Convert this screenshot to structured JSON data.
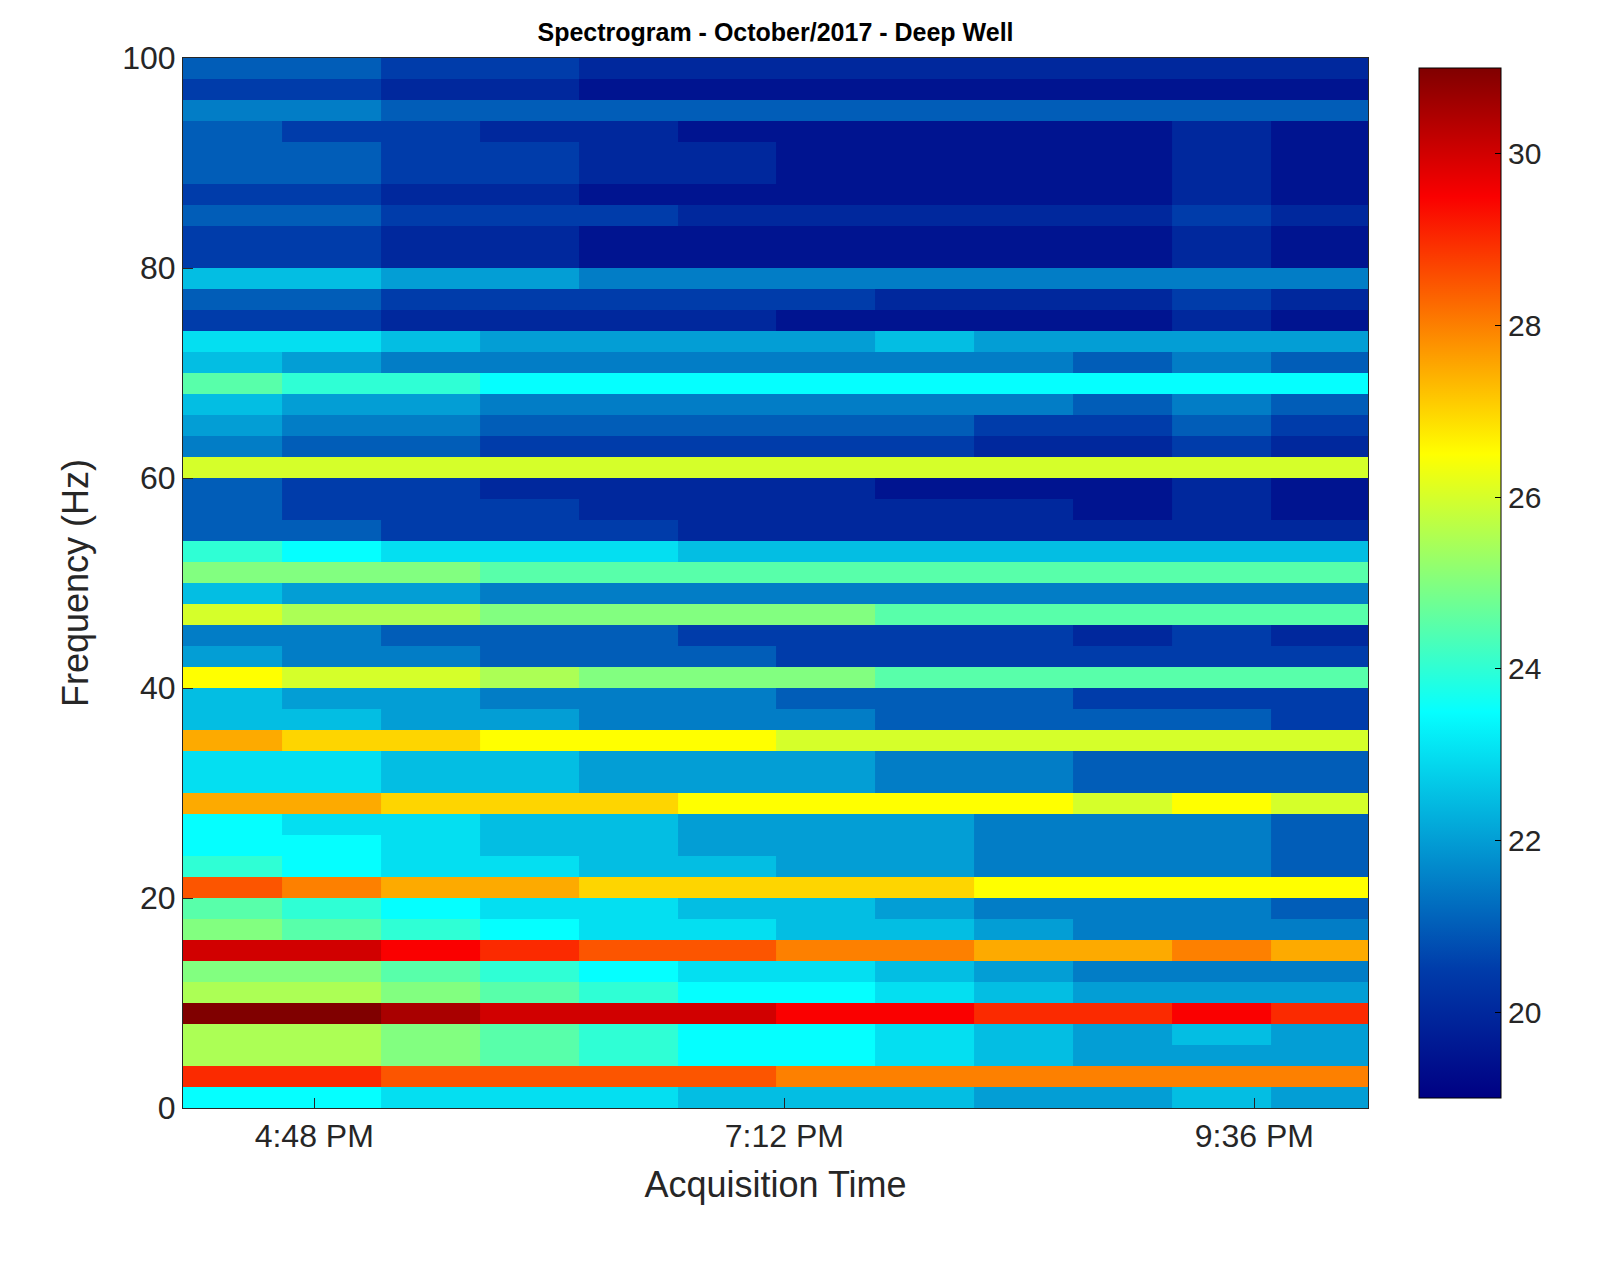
{
  "chart_data": {
    "type": "heatmap",
    "title": "Spectrogram - October/2017 - Deep Well",
    "x_label": "Acquisition Time",
    "y_label": "Frequency (Hz)",
    "x": [
      16.38,
      16.89,
      17.39,
      17.9,
      18.4,
      18.91,
      19.41,
      19.92,
      20.42,
      20.93,
      21.43,
      21.94
    ],
    "y": [
      1,
      3,
      5,
      7,
      9,
      11,
      13,
      15,
      17,
      19,
      21,
      23,
      25,
      27,
      29,
      31,
      33,
      35,
      37,
      39,
      41,
      43,
      45,
      47,
      49,
      51,
      53,
      55,
      57,
      59,
      61,
      63,
      65,
      67,
      69,
      71,
      73,
      75,
      77,
      79,
      81,
      83,
      85,
      87,
      89,
      91,
      93,
      95,
      97,
      99
    ],
    "cells": [
      [
        23.5,
        23.5,
        23,
        23,
        23,
        22.5,
        22.5,
        22.5,
        22,
        22,
        22.5,
        22
      ],
      [
        29,
        29,
        28.5,
        28.5,
        28.5,
        28.5,
        28,
        28,
        28,
        28,
        28,
        28
      ],
      [
        25.5,
        25.5,
        25,
        24.5,
        24,
        23.5,
        23.5,
        23,
        22.5,
        22,
        22,
        22
      ],
      [
        25.5,
        25.5,
        25,
        24.5,
        24,
        23.5,
        23.5,
        23,
        22.5,
        22,
        22.5,
        22
      ],
      [
        31,
        31,
        30.5,
        30,
        30,
        30,
        29.5,
        29.5,
        29,
        29,
        29.5,
        29
      ],
      [
        25.5,
        25.5,
        25,
        24.5,
        24,
        23.5,
        23.5,
        23,
        22.5,
        22,
        22,
        22
      ],
      [
        25,
        25,
        24.5,
        24,
        23.5,
        23,
        23,
        22.5,
        22,
        21.5,
        21.5,
        21.5
      ],
      [
        30,
        30,
        29.5,
        29,
        28.5,
        28.5,
        28,
        28,
        27.5,
        27.5,
        28,
        27.5
      ],
      [
        25,
        24.5,
        24,
        23.5,
        23,
        23,
        22.5,
        22.5,
        22,
        21.5,
        21.5,
        21.5
      ],
      [
        24.5,
        24,
        23.5,
        23,
        23,
        22.5,
        22.5,
        22,
        21.5,
        21.5,
        21.5,
        21
      ],
      [
        28.5,
        28,
        27.5,
        27.5,
        27,
        27,
        27,
        27,
        26.5,
        26.5,
        26.5,
        26.5
      ],
      [
        24,
        23.5,
        23,
        23,
        22.5,
        22.5,
        22,
        22,
        21.5,
        21.5,
        21.5,
        21
      ],
      [
        23.5,
        23.5,
        23,
        22.5,
        22.5,
        22,
        22,
        22,
        21.5,
        21.5,
        21.5,
        21
      ],
      [
        23.5,
        23,
        23,
        22.5,
        22.5,
        22,
        22,
        22,
        21.5,
        21.5,
        21.5,
        21
      ],
      [
        27.5,
        27.5,
        27,
        27,
        27,
        26.5,
        26.5,
        26.5,
        26.5,
        26,
        26.5,
        26
      ],
      [
        23,
        23,
        22.5,
        22.5,
        22,
        22,
        22,
        21.5,
        21.5,
        21,
        21,
        21
      ],
      [
        23,
        23,
        22.5,
        22.5,
        22,
        22,
        22,
        21.5,
        21.5,
        21,
        21,
        21
      ],
      [
        27.5,
        27,
        27,
        26.5,
        26.5,
        26.5,
        26,
        26,
        26,
        26,
        26,
        26
      ],
      [
        22.5,
        22.5,
        22,
        22,
        21.5,
        21.5,
        21.5,
        21,
        21,
        21,
        21,
        20.5
      ],
      [
        22.5,
        22,
        22,
        21.5,
        21.5,
        21.5,
        21,
        21,
        21,
        20.5,
        20.5,
        20.5
      ],
      [
        26.5,
        26,
        26,
        25.5,
        25,
        25,
        25,
        24.5,
        24.5,
        24.5,
        24.5,
        24.5
      ],
      [
        22,
        21.5,
        21.5,
        21,
        21,
        21,
        20.5,
        20.5,
        20.5,
        20.5,
        20.5,
        20.5
      ],
      [
        21.5,
        21.5,
        21,
        21,
        21,
        20.5,
        20.5,
        20.5,
        20.5,
        20,
        20.5,
        20
      ],
      [
        26,
        25.5,
        25.5,
        25,
        25,
        25,
        25,
        24.5,
        24.5,
        24.5,
        24.5,
        24.5
      ],
      [
        22.5,
        22,
        22,
        21.5,
        21.5,
        21.5,
        21.5,
        21.5,
        21.5,
        21.5,
        21.5,
        21.5
      ],
      [
        25,
        25,
        25,
        24.5,
        24.5,
        24.5,
        24.5,
        24.5,
        24.5,
        24.5,
        24.5,
        24.5
      ],
      [
        24,
        23.5,
        23,
        23,
        23,
        22.5,
        22.5,
        22.5,
        22.5,
        22.5,
        22.5,
        22.5
      ],
      [
        21,
        21,
        20.5,
        20.5,
        20.5,
        20,
        20,
        20,
        20,
        20,
        20,
        20
      ],
      [
        21,
        20.5,
        20.5,
        20.5,
        20,
        20,
        20,
        20,
        20,
        19.5,
        20,
        19.5
      ],
      [
        21,
        20.5,
        20.5,
        20,
        20,
        20,
        20,
        19.5,
        19.5,
        19.5,
        20,
        19.5
      ],
      [
        26,
        26,
        26,
        26,
        26,
        26,
        26,
        26,
        26,
        26,
        26,
        26
      ],
      [
        21.5,
        21,
        21,
        20.5,
        20.5,
        20.5,
        20.5,
        20.5,
        20,
        20,
        20.5,
        20
      ],
      [
        22,
        21.5,
        21.5,
        21,
        21,
        21,
        21,
        21,
        20.5,
        20.5,
        21,
        20.5
      ],
      [
        22.5,
        22,
        22,
        21.5,
        21.5,
        21.5,
        21.5,
        21.5,
        21.5,
        21,
        21.5,
        21
      ],
      [
        24.5,
        24,
        24,
        23.5,
        23.5,
        23.5,
        23.5,
        23.5,
        23.5,
        23.5,
        23.5,
        23.5
      ],
      [
        22.5,
        22,
        21.5,
        21.5,
        21.5,
        21.5,
        21.5,
        21.5,
        21.5,
        21,
        21.5,
        21
      ],
      [
        23,
        23,
        22.5,
        22,
        22,
        22,
        22,
        22.5,
        22,
        22,
        22,
        22
      ],
      [
        20.5,
        20.5,
        20,
        20,
        20,
        20,
        19.5,
        19.5,
        19.5,
        19.5,
        20,
        19.5
      ],
      [
        21,
        21,
        20.5,
        20.5,
        20.5,
        20.5,
        20.5,
        20,
        20,
        20,
        20.5,
        20
      ],
      [
        22.5,
        22.5,
        22,
        22,
        21.5,
        21.5,
        21.5,
        21.5,
        21.5,
        21.5,
        21.5,
        21.5
      ],
      [
        20.5,
        20.5,
        20,
        20,
        19.5,
        19.5,
        19.5,
        19.5,
        19.5,
        19.5,
        20,
        19.5
      ],
      [
        20.5,
        20.5,
        20,
        20,
        19.5,
        19.5,
        19.5,
        19.5,
        19.5,
        19.5,
        20,
        19.5
      ],
      [
        21,
        21,
        20.5,
        20.5,
        20.5,
        20,
        20,
        20,
        20,
        20,
        20.5,
        20
      ],
      [
        20.5,
        20.5,
        20,
        20,
        19.5,
        19.5,
        19.5,
        19.5,
        19.5,
        19.5,
        20,
        19.5
      ],
      [
        21,
        21,
        20.5,
        20.5,
        20,
        20,
        19.5,
        19.5,
        19.5,
        19.5,
        20,
        19.5
      ],
      [
        21,
        21,
        20.5,
        20.5,
        20,
        20,
        19.5,
        19.5,
        19.5,
        19.5,
        20,
        19.5
      ],
      [
        21,
        20.5,
        20.5,
        20,
        20,
        19.5,
        19.5,
        19.5,
        19.5,
        19.5,
        20,
        19.5
      ],
      [
        21.5,
        21.5,
        21,
        21,
        21,
        21,
        21,
        21,
        21,
        21,
        21,
        21
      ],
      [
        20.5,
        20.5,
        20,
        20,
        19.5,
        19.5,
        19.5,
        19.5,
        19.5,
        19.5,
        19.5,
        19.5
      ],
      [
        21,
        21,
        20.5,
        20.5,
        20,
        20,
        20,
        20,
        20,
        20,
        20,
        20
      ]
    ],
    "xlim": [
      16.13,
      22.18
    ],
    "xticks": [
      {
        "value": 16.8,
        "label": "4:48 PM"
      },
      {
        "value": 19.2,
        "label": "7:12 PM"
      },
      {
        "value": 21.6,
        "label": "9:36 PM"
      }
    ],
    "ylim": [
      0,
      100
    ],
    "yticks": [
      0,
      20,
      40,
      60,
      80,
      100
    ],
    "colorbar_range": [
      19,
      31
    ],
    "colorbar_ticks": [
      20,
      22,
      24,
      26,
      28,
      30
    ]
  }
}
